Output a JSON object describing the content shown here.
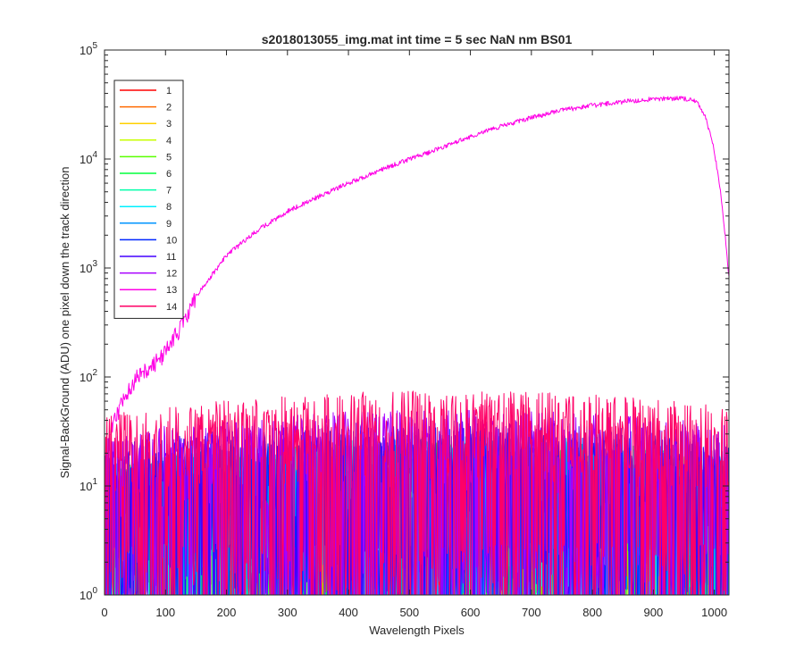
{
  "chart_data": {
    "type": "line",
    "title": "s2018013055_img.mat int time = 5 sec  NaN nm BS01",
    "xlabel": "Wavelength Pixels",
    "ylabel": "Signal-BackGround (ADU) one pixel down the track direction",
    "xlim": [
      0,
      1024
    ],
    "ylim": [
      1,
      100000
    ],
    "yscale": "log",
    "grid": false,
    "legend_position": "top-left",
    "x_ticks": [
      "0",
      "100",
      "200",
      "300",
      "400",
      "500",
      "600",
      "700",
      "800",
      "900",
      "1000"
    ],
    "x_tick_values": [
      0,
      100,
      200,
      300,
      400,
      500,
      600,
      700,
      800,
      900,
      1000
    ],
    "y_ticks": [
      {
        "base": "10",
        "exp": "0",
        "value": 1
      },
      {
        "base": "10",
        "exp": "1",
        "value": 10
      },
      {
        "base": "10",
        "exp": "2",
        "value": 100
      },
      {
        "base": "10",
        "exp": "3",
        "value": 1000
      },
      {
        "base": "10",
        "exp": "4",
        "value": 10000
      },
      {
        "base": "10",
        "exp": "5",
        "value": 100000
      }
    ],
    "series": [
      {
        "name": "1",
        "color": "#ff0000",
        "level": 8,
        "x": [
          0,
          1024
        ],
        "y": [
          1,
          1
        ]
      },
      {
        "name": "2",
        "color": "#ff6a00",
        "level": 9,
        "x": [
          0,
          1024
        ],
        "y": [
          1,
          1
        ]
      },
      {
        "name": "3",
        "color": "#ffd000",
        "level": 9,
        "x": [
          0,
          1024
        ],
        "y": [
          1,
          1
        ]
      },
      {
        "name": "4",
        "color": "#c8ff00",
        "level": 10,
        "x": [
          0,
          1024
        ],
        "y": [
          1,
          1
        ]
      },
      {
        "name": "5",
        "color": "#5aff00",
        "level": 10,
        "x": [
          0,
          1024
        ],
        "y": [
          1,
          1
        ]
      },
      {
        "name": "6",
        "color": "#00ff3c",
        "level": 10,
        "x": [
          0,
          1024
        ],
        "y": [
          1,
          1
        ]
      },
      {
        "name": "7",
        "color": "#00ffaa",
        "level": 11,
        "x": [
          0,
          1024
        ],
        "y": [
          1,
          1
        ]
      },
      {
        "name": "8",
        "color": "#00f0ff",
        "level": 11,
        "x": [
          0,
          1024
        ],
        "y": [
          1,
          1
        ]
      },
      {
        "name": "9",
        "color": "#0094ff",
        "level": 12,
        "x": [
          0,
          1024
        ],
        "y": [
          1,
          1
        ]
      },
      {
        "name": "10",
        "color": "#0026ff",
        "level": 14,
        "x": [
          0,
          1024
        ],
        "y": [
          1,
          1
        ]
      },
      {
        "name": "11",
        "color": "#4400ff",
        "level": 16,
        "x": [
          0,
          1024
        ],
        "y": [
          1,
          1
        ]
      },
      {
        "name": "12",
        "color": "#a800ff",
        "level": 20,
        "x": [
          0,
          1024
        ],
        "y": [
          1,
          1
        ]
      },
      {
        "name": "13",
        "color": "#ff00e6",
        "x": [
          10,
          20,
          30,
          40,
          60,
          80,
          100,
          120,
          150,
          200,
          250,
          300,
          350,
          400,
          450,
          500,
          550,
          600,
          650,
          700,
          750,
          800,
          850,
          900,
          950,
          970,
          985,
          1000,
          1010,
          1020,
          1024
        ],
        "y": [
          30,
          45,
          60,
          80,
          110,
          130,
          170,
          260,
          550,
          1300,
          2200,
          3300,
          4500,
          6000,
          7800,
          10000,
          12500,
          16000,
          20000,
          24000,
          28000,
          31000,
          33500,
          35500,
          36000,
          34000,
          25000,
          12000,
          5000,
          1500,
          800
        ]
      },
      {
        "name": "14",
        "color": "#ff0066",
        "level": 30,
        "x": [
          0,
          1024
        ],
        "y": [
          1,
          1
        ]
      }
    ]
  }
}
